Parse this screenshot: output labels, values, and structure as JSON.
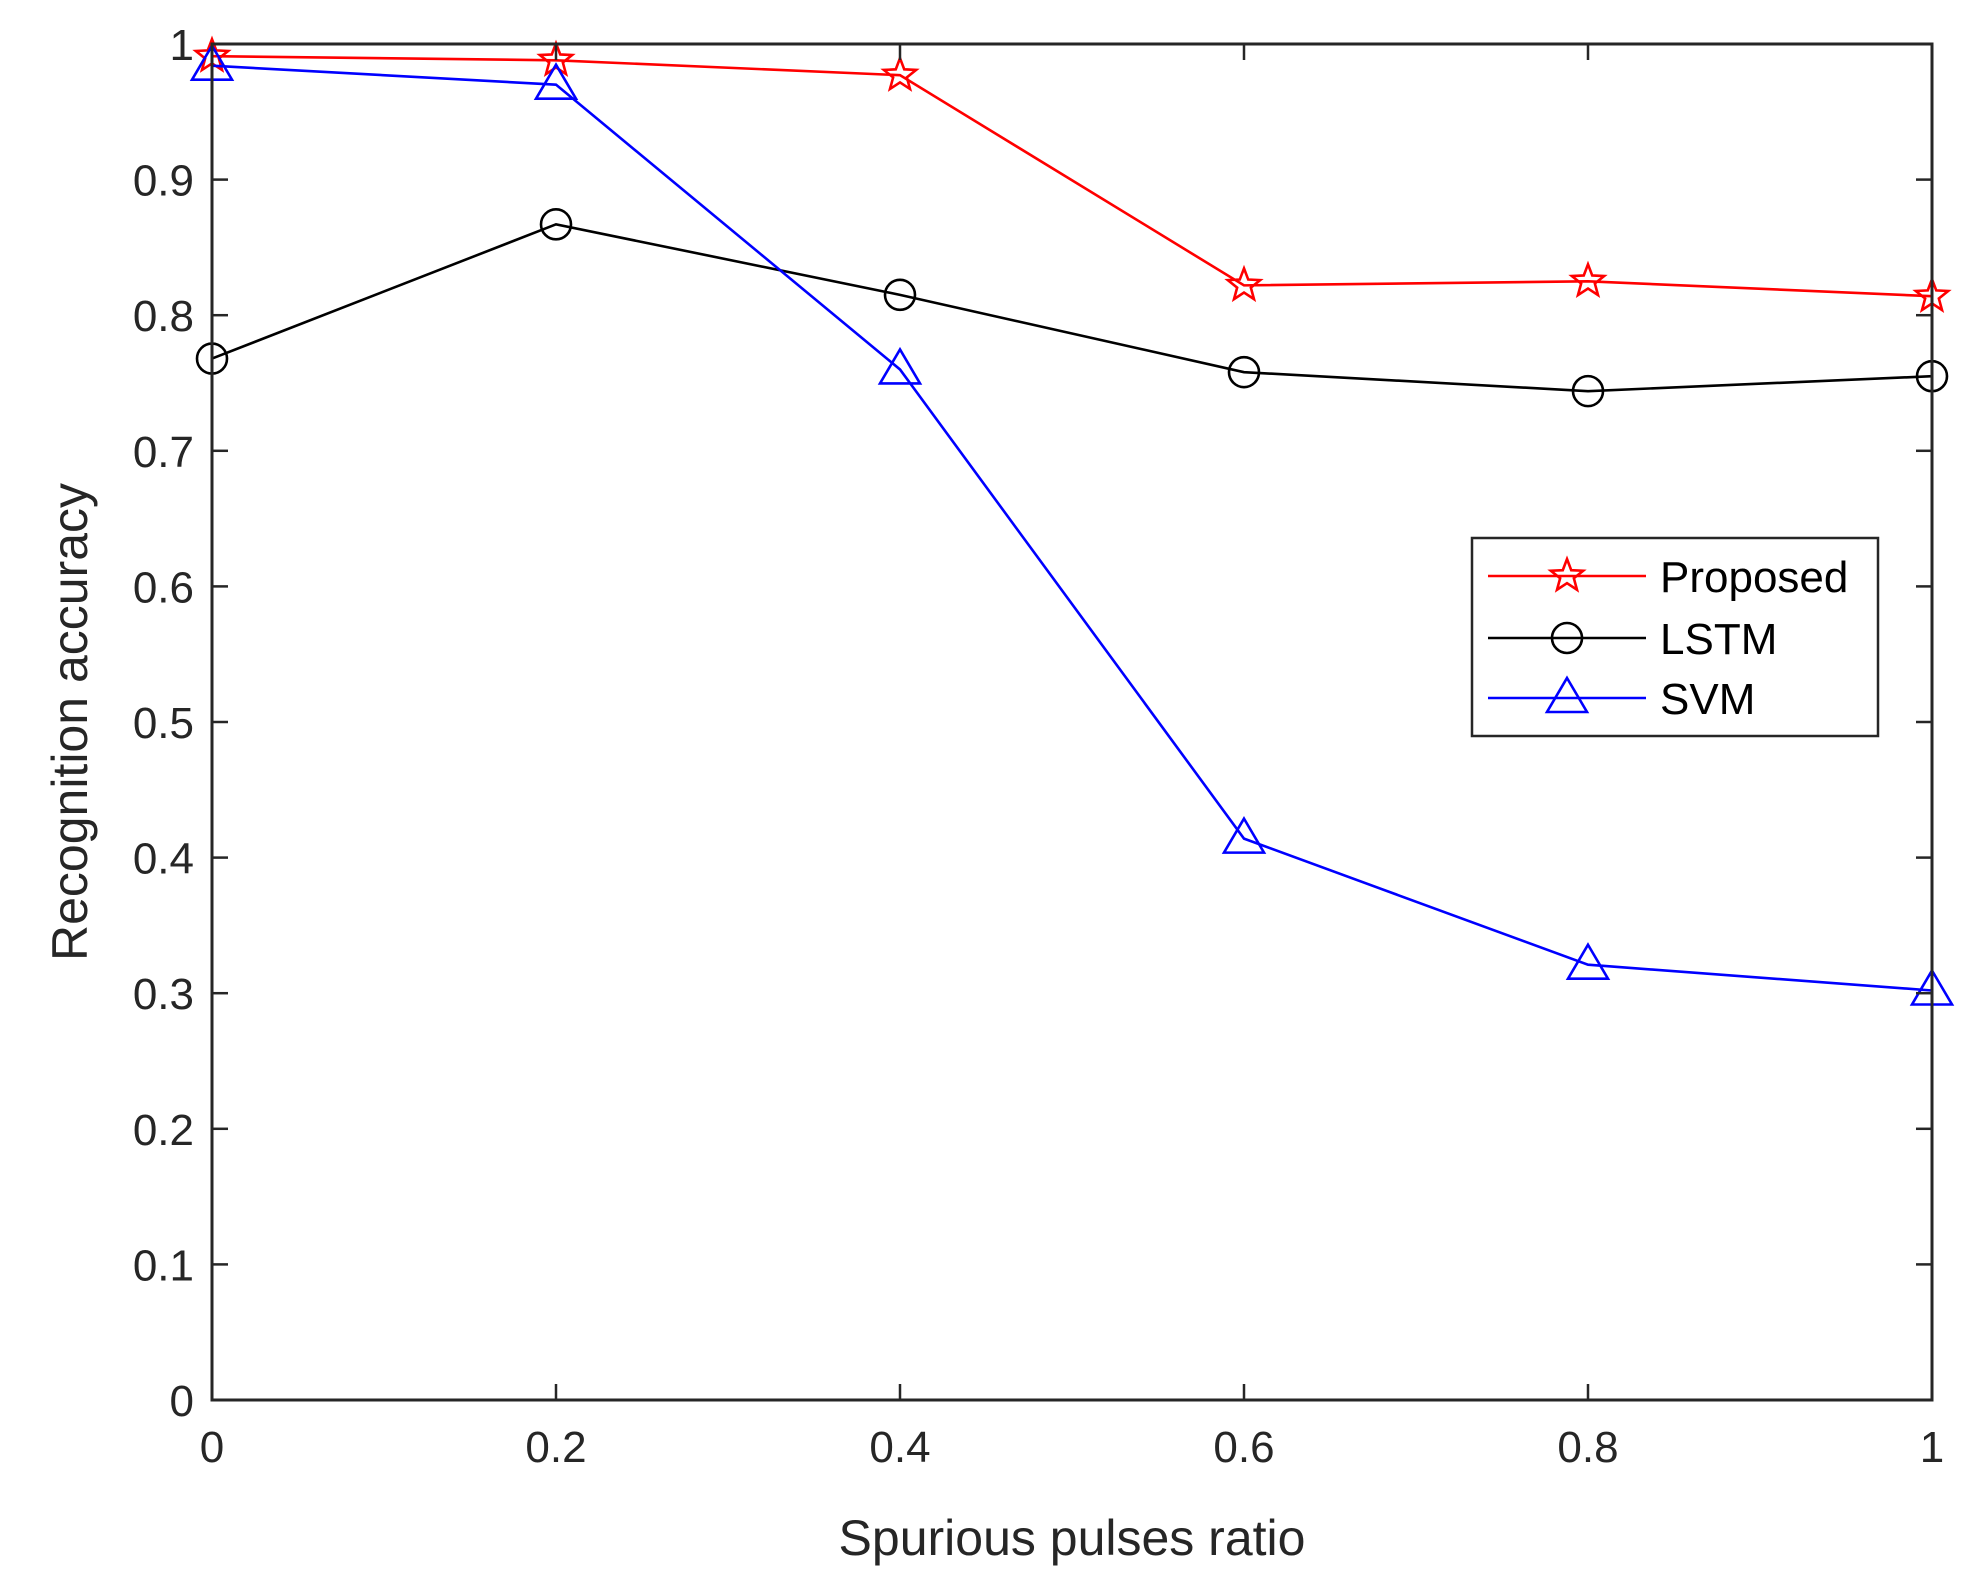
{
  "chart_data": {
    "type": "line",
    "title": "",
    "xlabel": "Spurious pulses ratio",
    "ylabel": "Recognition accuracy",
    "xlim": [
      0,
      1
    ],
    "ylim": [
      0,
      1
    ],
    "xticks": [
      0,
      0.2,
      0.4,
      0.6,
      0.8,
      1
    ],
    "yticks": [
      0,
      0.1,
      0.2,
      0.3,
      0.4,
      0.5,
      0.6,
      0.7,
      0.8,
      0.9,
      1
    ],
    "xtick_labels": [
      "0",
      "0.2",
      "0.4",
      "0.6",
      "0.8",
      "1"
    ],
    "ytick_labels": [
      "0",
      "0.1",
      "0.2",
      "0.3",
      "0.4",
      "0.5",
      "0.6",
      "0.7",
      "0.8",
      "0.9",
      "1"
    ],
    "grid": false,
    "legend_position": "right",
    "x": [
      0,
      0.2,
      0.4,
      0.6,
      0.8,
      1
    ],
    "series": [
      {
        "name": "Proposed",
        "color": "#ff0000",
        "marker": "star",
        "values": [
          0.991,
          0.988,
          0.977,
          0.822,
          0.825,
          0.814
        ]
      },
      {
        "name": "LSTM",
        "color": "#000000",
        "marker": "circle",
        "values": [
          0.768,
          0.867,
          0.815,
          0.758,
          0.744,
          0.755
        ]
      },
      {
        "name": "SVM",
        "color": "#0000ff",
        "marker": "triangle",
        "values": [
          0.984,
          0.97,
          0.76,
          0.414,
          0.321,
          0.302
        ]
      }
    ]
  }
}
